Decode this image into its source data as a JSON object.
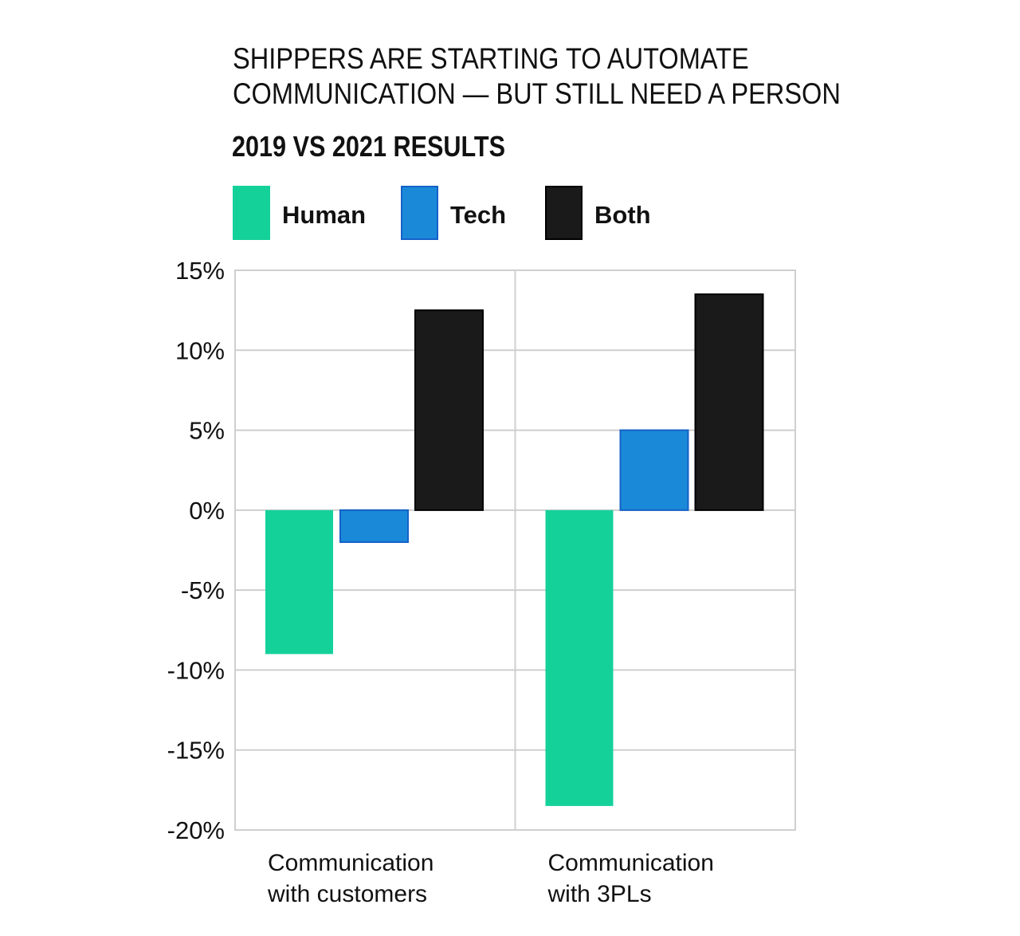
{
  "chart_data": {
    "type": "bar",
    "title_lines": [
      "SHIPPERS ARE STARTING TO AUTOMATE",
      "COMMUNICATION — BUT STILL NEED A PERSON"
    ],
    "subtitle": "2019 VS 2021 RESULTS",
    "categories": [
      [
        "Communication",
        "with customers"
      ],
      [
        "Communication",
        "with 3PLs"
      ]
    ],
    "series": [
      {
        "name": "Human",
        "color": "#14d19a",
        "values": [
          -9,
          -18.5
        ]
      },
      {
        "name": "Tech",
        "color": "#1a8ad8",
        "values": [
          -2,
          5
        ]
      },
      {
        "name": "Both",
        "color": "#1a1a1a",
        "values": [
          12.5,
          13.5
        ]
      }
    ],
    "ylim": [
      -20,
      15
    ],
    "yticks": [
      15,
      10,
      5,
      0,
      -5,
      -10,
      -15,
      -20
    ],
    "ytick_labels": [
      "15%",
      "10%",
      "5%",
      "0%",
      "-5%",
      "-10%",
      "-15%",
      "-20%"
    ],
    "grid": true,
    "legend": "top-left",
    "xlabel": "",
    "ylabel": ""
  }
}
